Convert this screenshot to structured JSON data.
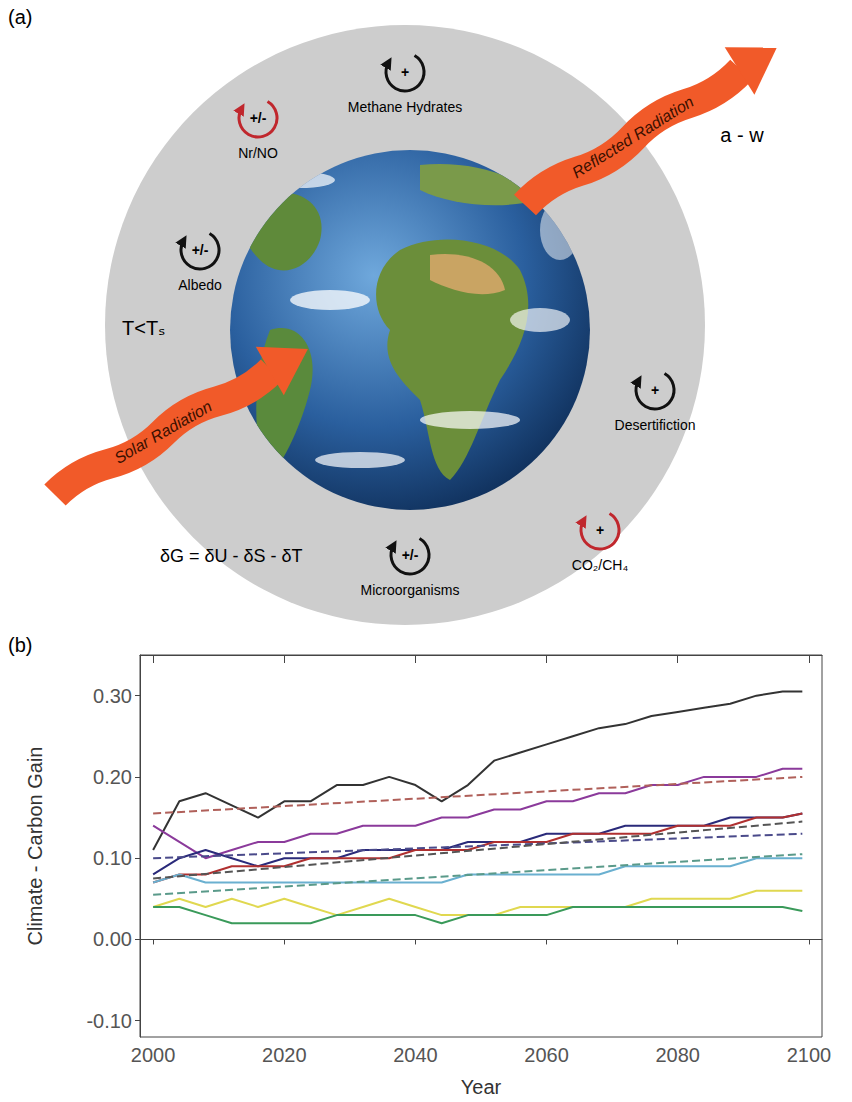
{
  "diagram": {
    "panel_label": "(a)",
    "temperature_label": "T<Tₛ",
    "equation": "δG = δU - δS - δT",
    "incoming": "Solar Radiation",
    "outgoing": "Reflected Radiation",
    "outgoing_label": "a - w",
    "feedbacks": [
      {
        "label": "Methane Hydrates",
        "sign": "+",
        "color": "#111111"
      },
      {
        "label": "Nr/NO",
        "sign": "+/-",
        "color": "#c0272d"
      },
      {
        "label": "Albedo",
        "sign": "+/-",
        "color": "#111111"
      },
      {
        "label": "Desertifiction",
        "sign": "+",
        "color": "#111111"
      },
      {
        "label": "CO₂/CH₄",
        "sign": "+",
        "color": "#c0272d"
      },
      {
        "label": "Microorganisms",
        "sign": "+/-",
        "color": "#111111"
      }
    ]
  },
  "chart_data": {
    "panel_label": "(b)",
    "type": "line",
    "x_label": "Year",
    "y_label": "Climate - Carbon Gain",
    "x": [
      2000,
      2004,
      2008,
      2012,
      2016,
      2020,
      2024,
      2028,
      2032,
      2036,
      2040,
      2044,
      2048,
      2052,
      2056,
      2060,
      2064,
      2068,
      2072,
      2076,
      2080,
      2084,
      2088,
      2092,
      2096,
      2099
    ],
    "xlim": [
      1998,
      2102
    ],
    "xticks": [
      2000,
      2020,
      2040,
      2060,
      2080,
      2100
    ],
    "ylim": [
      -0.12,
      0.35
    ],
    "yticks": [
      {
        "value": -0.1,
        "label": "-0.10"
      },
      {
        "value": 0,
        "label": "0.00"
      },
      {
        "value": 0.1,
        "label": "0.10"
      },
      {
        "value": 0.2,
        "label": "0.20"
      },
      {
        "value": 0.3,
        "label": "0.30"
      }
    ],
    "grid": false,
    "series": [
      {
        "color": "#333333",
        "line_style": "solid",
        "values": [
          0.11,
          0.17,
          0.18,
          0.165,
          0.15,
          0.17,
          0.17,
          0.19,
          0.19,
          0.2,
          0.19,
          0.17,
          0.19,
          0.22,
          0.23,
          0.24,
          0.25,
          0.26,
          0.265,
          0.275,
          0.28,
          0.285,
          0.29,
          0.3,
          0.305,
          0.305
        ]
      },
      {
        "color": "#8b3a9b",
        "line_style": "solid",
        "values": [
          0.14,
          0.12,
          0.1,
          0.11,
          0.12,
          0.12,
          0.13,
          0.13,
          0.14,
          0.14,
          0.14,
          0.15,
          0.15,
          0.16,
          0.16,
          0.17,
          0.17,
          0.18,
          0.18,
          0.19,
          0.19,
          0.2,
          0.2,
          0.2,
          0.21,
          0.21
        ]
      },
      {
        "color": "#2a2a7a",
        "line_style": "solid",
        "values": [
          0.08,
          0.1,
          0.11,
          0.1,
          0.09,
          0.1,
          0.1,
          0.1,
          0.11,
          0.11,
          0.11,
          0.11,
          0.12,
          0.12,
          0.12,
          0.13,
          0.13,
          0.13,
          0.14,
          0.14,
          0.14,
          0.14,
          0.15,
          0.15,
          0.15,
          0.155
        ]
      },
      {
        "color": "#b03030",
        "line_style": "solid",
        "values": [
          0.07,
          0.08,
          0.08,
          0.09,
          0.09,
          0.09,
          0.1,
          0.1,
          0.1,
          0.1,
          0.11,
          0.11,
          0.11,
          0.12,
          0.12,
          0.12,
          0.13,
          0.13,
          0.13,
          0.13,
          0.14,
          0.14,
          0.14,
          0.15,
          0.15,
          0.155
        ]
      },
      {
        "color": "#6ab0d0",
        "line_style": "solid",
        "values": [
          0.07,
          0.08,
          0.07,
          0.07,
          0.07,
          0.07,
          0.07,
          0.07,
          0.07,
          0.07,
          0.07,
          0.07,
          0.08,
          0.08,
          0.08,
          0.08,
          0.08,
          0.08,
          0.09,
          0.09,
          0.09,
          0.09,
          0.09,
          0.1,
          0.1,
          0.1
        ]
      },
      {
        "color": "#e0d850",
        "line_style": "solid",
        "values": [
          0.04,
          0.05,
          0.04,
          0.05,
          0.04,
          0.05,
          0.04,
          0.03,
          0.04,
          0.05,
          0.04,
          0.03,
          0.03,
          0.03,
          0.04,
          0.04,
          0.04,
          0.04,
          0.04,
          0.05,
          0.05,
          0.05,
          0.05,
          0.06,
          0.06,
          0.06
        ]
      },
      {
        "color": "#3a9a5a",
        "line_style": "solid",
        "values": [
          0.04,
          0.04,
          0.03,
          0.02,
          0.02,
          0.02,
          0.02,
          0.03,
          0.03,
          0.03,
          0.03,
          0.02,
          0.03,
          0.03,
          0.03,
          0.03,
          0.04,
          0.04,
          0.04,
          0.04,
          0.04,
          0.04,
          0.04,
          0.04,
          0.04,
          0.035
        ]
      },
      {
        "color": "#b0605a",
        "line_style": "dashed",
        "x": [
          2000,
          2099
        ],
        "values": [
          0.155,
          0.2
        ]
      },
      {
        "color": "#4a4a8a",
        "line_style": "dashed",
        "x": [
          2000,
          2099
        ],
        "values": [
          0.1,
          0.13
        ]
      },
      {
        "color": "#555555",
        "line_style": "dashed",
        "x": [
          2000,
          2099
        ],
        "values": [
          0.075,
          0.145
        ]
      },
      {
        "color": "#5a9a8a",
        "line_style": "dashed",
        "x": [
          2000,
          2099
        ],
        "values": [
          0.055,
          0.105
        ]
      }
    ]
  }
}
